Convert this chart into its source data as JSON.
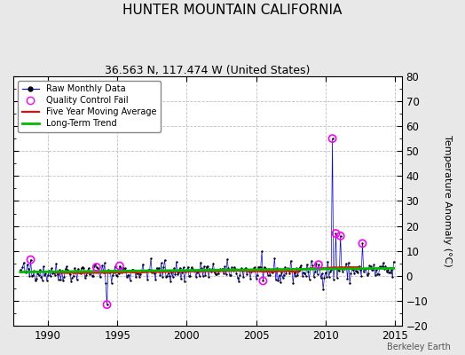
{
  "title": "HUNTER MOUNTAIN CALIFORNIA",
  "subtitle": "36.563 N, 117.474 W (United States)",
  "ylabel": "Temperature Anomaly (°C)",
  "watermark": "Berkeley Earth",
  "xlim": [
    1987.5,
    2015.5
  ],
  "ylim": [
    -20,
    80
  ],
  "yticks": [
    -20,
    -10,
    0,
    10,
    20,
    30,
    40,
    50,
    60,
    70,
    80
  ],
  "xticks": [
    1990,
    1995,
    2000,
    2005,
    2010,
    2015
  ],
  "bg_color": "#e8e8e8",
  "plot_bg_color": "#ffffff",
  "raw_line_color": "#0000ff",
  "raw_dot_color": "#000000",
  "qc_fail_color": "#ff00ff",
  "moving_avg_color": "#ff0000",
  "trend_color": "#00bb00",
  "title_fontsize": 11,
  "subtitle_fontsize": 9,
  "seed": 42,
  "n_months": 324,
  "start_year": 1988.0
}
